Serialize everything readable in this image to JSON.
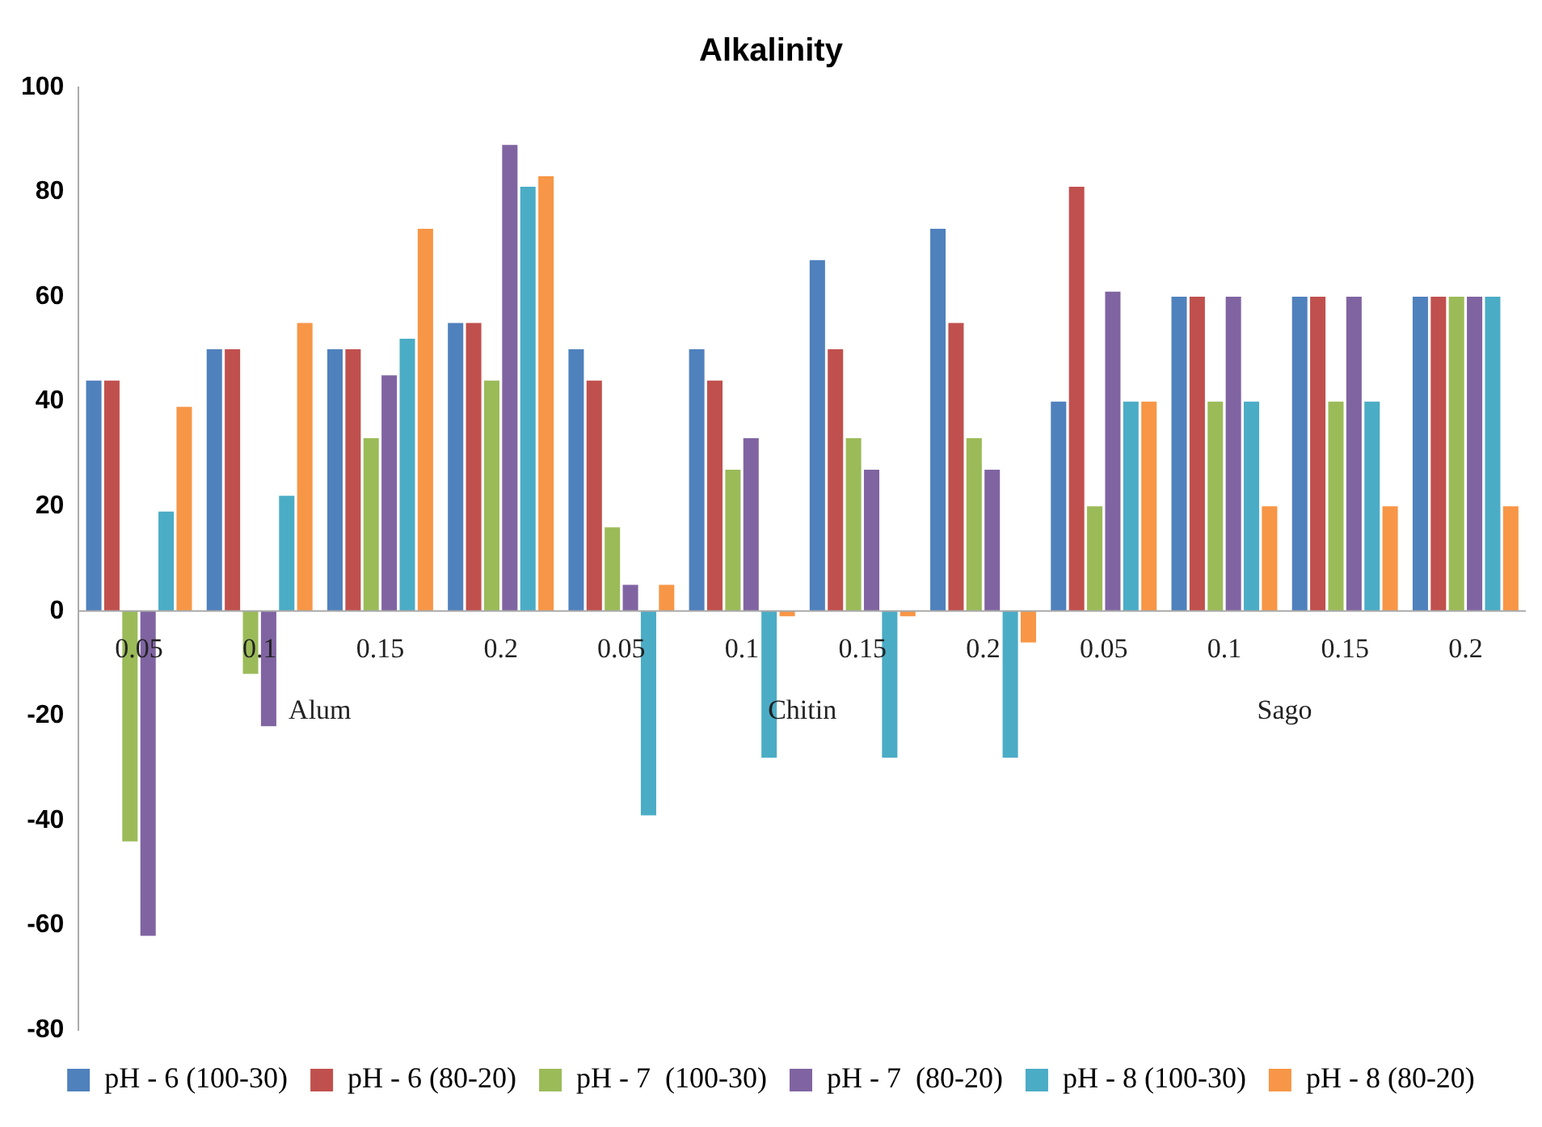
{
  "chart_data": {
    "type": "bar",
    "title": "Alkalinity",
    "categories": [
      "0.05",
      "0.1",
      "0.15",
      "0.2",
      "0.05",
      "0.1",
      "0.15",
      "0.2",
      "0.05",
      "0.1",
      "0.15",
      "0.2"
    ],
    "annotations": [
      "Alum",
      "Chitin",
      "Sago"
    ],
    "series": [
      {
        "name": "pH - 6 (100-30)",
        "color": "#4f81bd",
        "values": [
          44,
          50,
          50,
          55,
          50,
          50,
          67,
          73,
          40,
          60,
          60,
          60
        ]
      },
      {
        "name": "pH - 6 (80-20)",
        "color": "#c0504d",
        "values": [
          44,
          50,
          50,
          55,
          44,
          44,
          50,
          55,
          81,
          60,
          60,
          60
        ]
      },
      {
        "name": "pH - 7  (100-30)",
        "color": "#9bbb59",
        "values": [
          -44,
          -12,
          33,
          44,
          16,
          27,
          33,
          33,
          20,
          40,
          40,
          60
        ]
      },
      {
        "name": "pH - 7  (80-20)",
        "color": "#8064a2",
        "values": [
          -62,
          -22,
          45,
          89,
          5,
          33,
          27,
          27,
          61,
          60,
          60,
          60
        ]
      },
      {
        "name": "pH - 8 (100-30)",
        "color": "#4bacc6",
        "values": [
          19,
          22,
          52,
          81,
          -39,
          -28,
          -28,
          -28,
          40,
          40,
          40,
          60
        ]
      },
      {
        "name": "pH - 8 (80-20)",
        "color": "#f79646",
        "values": [
          39,
          55,
          73,
          83,
          5,
          -1,
          -1,
          -6,
          40,
          20,
          20,
          20
        ]
      }
    ],
    "ylim": [
      -80,
      100
    ],
    "yticks": [
      -80,
      -60,
      -40,
      -20,
      0,
      20,
      40,
      60,
      80,
      100
    ],
    "grid": false,
    "legend": "bottom"
  }
}
